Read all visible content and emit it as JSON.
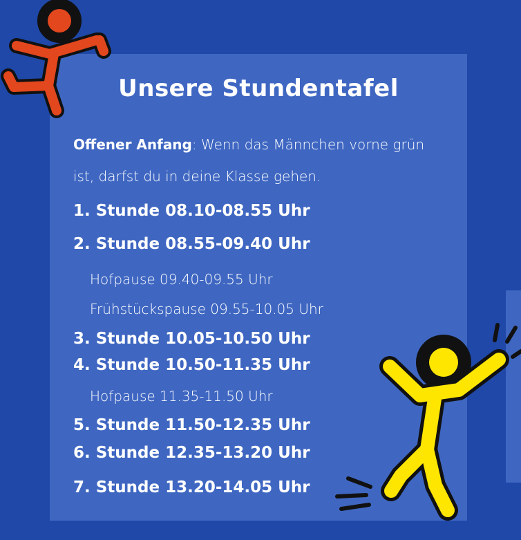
{
  "title": "Unsere Stundentafel",
  "intro": {
    "bold": "Offener Anfang",
    "rest": ": Wenn das Männchen vorne grün ist, darfst du in deine Klasse gehen."
  },
  "schedule": [
    {
      "type": "lesson",
      "text": "1. Stunde 08.10-08.55 Uhr"
    },
    {
      "type": "lesson",
      "text": "2. Stunde 08.55-09.40 Uhr"
    },
    {
      "type": "break",
      "text": "Hofpause 09.40-09.55 Uhr"
    },
    {
      "type": "break",
      "text": "Frühstückspause 09.55-10.05 Uhr"
    },
    {
      "type": "lesson",
      "text": "3. Stunde 10.05-10.50 Uhr"
    },
    {
      "type": "lesson",
      "text": "4. Stunde 10.50-11.35 Uhr"
    },
    {
      "type": "break",
      "text": "Hofpause 11.35-11.50 Uhr"
    },
    {
      "type": "lesson",
      "text": "5. Stunde 11.50-12.35 Uhr"
    },
    {
      "type": "lesson",
      "text": "6. Stunde 12.35-13.20 Uhr"
    },
    {
      "type": "lesson",
      "text": "7. Stunde 13.20-14.05 Uhr"
    }
  ],
  "colors": {
    "background": "#1f48a8",
    "card": "#3f67c2",
    "text": "#ffffff",
    "figure_orange": "#e3471e",
    "figure_yellow": "#ffe600"
  },
  "icons": [
    "running-figure-orange-icon",
    "dancing-figure-yellow-icon"
  ]
}
